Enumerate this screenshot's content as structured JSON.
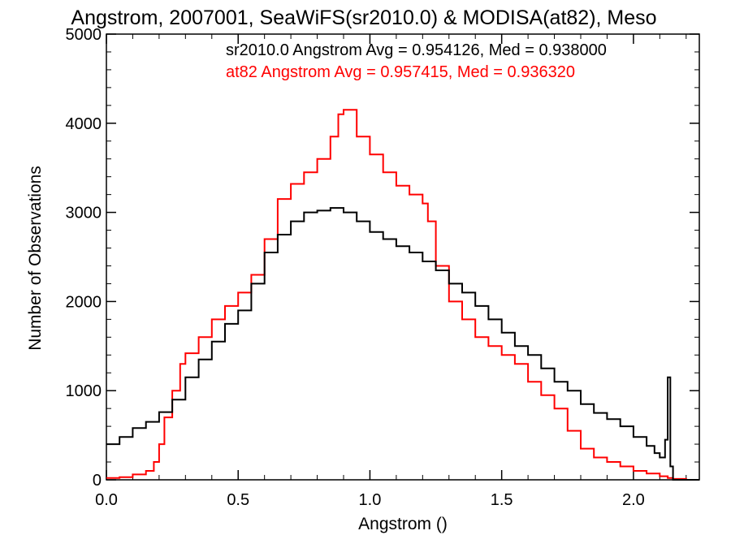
{
  "chart_data": {
    "type": "line",
    "title": "Angstrom, 2007001, SeaWiFS(sr2010.0) & MODISA(at82), Meso",
    "xlabel": "Angstrom ()",
    "ylabel": "Number of Observations",
    "xlim": [
      0,
      2.25
    ],
    "ylim": [
      0,
      5000
    ],
    "x_ticks": [
      "0.0",
      "0.5",
      "1.0",
      "1.5",
      "2.0"
    ],
    "y_ticks": [
      "0",
      "1000",
      "2000",
      "3000",
      "4000",
      "5000"
    ],
    "grid": false,
    "step": true,
    "annotations": [
      {
        "text": "sr2010.0 Angstrom Avg = 0.954126, Med = 0.938000",
        "color": "#000000"
      },
      {
        "text": "at82 Angstrom Avg = 0.957415, Med = 0.936320",
        "color": "#ff0000"
      }
    ],
    "series": [
      {
        "name": "sr2010.0",
        "color": "#000000",
        "x": [
          0.0,
          0.05,
          0.1,
          0.15,
          0.2,
          0.25,
          0.3,
          0.35,
          0.4,
          0.45,
          0.5,
          0.55,
          0.6,
          0.65,
          0.7,
          0.75,
          0.8,
          0.85,
          0.9,
          0.95,
          1.0,
          1.05,
          1.1,
          1.15,
          1.2,
          1.25,
          1.3,
          1.35,
          1.4,
          1.45,
          1.5,
          1.55,
          1.6,
          1.65,
          1.7,
          1.75,
          1.8,
          1.85,
          1.9,
          1.95,
          2.0,
          2.05,
          2.08,
          2.1,
          2.12,
          2.13,
          2.14,
          2.15,
          2.2,
          2.25
        ],
        "y": [
          400,
          480,
          580,
          650,
          760,
          900,
          1150,
          1350,
          1550,
          1750,
          1900,
          2200,
          2550,
          2750,
          2900,
          3000,
          3020,
          3050,
          3000,
          2900,
          2780,
          2700,
          2620,
          2550,
          2450,
          2350,
          2200,
          2100,
          1950,
          1800,
          1650,
          1500,
          1400,
          1250,
          1100,
          1000,
          850,
          750,
          680,
          600,
          480,
          380,
          300,
          250,
          450,
          1150,
          150,
          0,
          0,
          0
        ]
      },
      {
        "name": "at82",
        "color": "#ff0000",
        "x": [
          0.0,
          0.05,
          0.1,
          0.15,
          0.18,
          0.2,
          0.22,
          0.25,
          0.28,
          0.3,
          0.35,
          0.4,
          0.45,
          0.5,
          0.55,
          0.6,
          0.65,
          0.7,
          0.75,
          0.8,
          0.85,
          0.88,
          0.9,
          0.95,
          1.0,
          1.05,
          1.1,
          1.15,
          1.2,
          1.22,
          1.25,
          1.3,
          1.35,
          1.4,
          1.45,
          1.5,
          1.55,
          1.6,
          1.65,
          1.7,
          1.75,
          1.8,
          1.85,
          1.9,
          1.95,
          2.0,
          2.05,
          2.1,
          2.13,
          2.15,
          2.2,
          2.25
        ],
        "y": [
          20,
          30,
          60,
          100,
          200,
          400,
          700,
          1000,
          1300,
          1420,
          1600,
          1800,
          1950,
          2100,
          2300,
          2700,
          3150,
          3320,
          3450,
          3600,
          3850,
          4100,
          4150,
          3850,
          3650,
          3450,
          3300,
          3200,
          3100,
          2900,
          2400,
          2000,
          1800,
          1600,
          1500,
          1400,
          1300,
          1100,
          950,
          800,
          550,
          350,
          250,
          200,
          150,
          100,
          70,
          40,
          20,
          10,
          0,
          0
        ]
      }
    ]
  }
}
